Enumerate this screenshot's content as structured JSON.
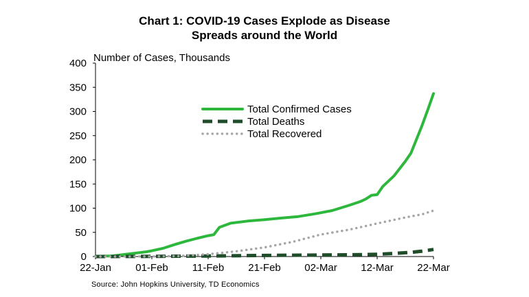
{
  "chart_data": {
    "type": "line",
    "title": "Chart 1: COVID-19 Cases Explode as Disease",
    "title_line2": "Spreads around the World",
    "ylabel": "Number of Cases, Thousands",
    "source": "Source: John Hopkins University, TD Economics",
    "xlim": [
      "2020-01-22",
      "2020-03-22"
    ],
    "ylim": [
      0,
      400
    ],
    "yticks": [
      0,
      50,
      100,
      150,
      200,
      250,
      300,
      350,
      400
    ],
    "xtick_labels": [
      "22-Jan",
      "01-Feb",
      "11-Feb",
      "21-Feb",
      "02-Mar",
      "12-Mar",
      "22-Mar"
    ],
    "xtick_dates": [
      "2020-01-22",
      "2020-02-01",
      "2020-02-11",
      "2020-02-21",
      "2020-03-02",
      "2020-03-12",
      "2020-03-22"
    ],
    "grid": false,
    "legend_position": "center",
    "series": [
      {
        "name": "Total Confirmed Cases",
        "color": "#2db83d",
        "style": "solid",
        "points": [
          [
            "2020-01-22",
            0.6
          ],
          [
            "2020-01-25",
            1.3
          ],
          [
            "2020-01-28",
            5.5
          ],
          [
            "2020-01-31",
            9.8
          ],
          [
            "2020-02-01",
            11.9
          ],
          [
            "2020-02-03",
            17
          ],
          [
            "2020-02-05",
            24.5
          ],
          [
            "2020-02-07",
            31.5
          ],
          [
            "2020-02-09",
            37.6
          ],
          [
            "2020-02-11",
            43.1
          ],
          [
            "2020-02-12",
            45.2
          ],
          [
            "2020-02-13",
            60.4
          ],
          [
            "2020-02-15",
            69
          ],
          [
            "2020-02-18",
            73.3
          ],
          [
            "2020-02-21",
            76.2
          ],
          [
            "2020-02-24",
            79.6
          ],
          [
            "2020-02-27",
            82.7
          ],
          [
            "2020-03-01",
            88.4
          ],
          [
            "2020-03-04",
            95.1
          ],
          [
            "2020-03-07",
            105.8
          ],
          [
            "2020-03-09",
            113.6
          ],
          [
            "2020-03-10",
            119
          ],
          [
            "2020-03-11",
            126.7
          ],
          [
            "2020-03-12",
            128
          ],
          [
            "2020-03-13",
            145
          ],
          [
            "2020-03-15",
            167
          ],
          [
            "2020-03-17",
            197
          ],
          [
            "2020-03-18",
            214
          ],
          [
            "2020-03-19",
            243
          ],
          [
            "2020-03-20",
            272
          ],
          [
            "2020-03-21",
            304
          ],
          [
            "2020-03-22",
            337
          ]
        ]
      },
      {
        "name": "Total Deaths",
        "color": "#1f4d2a",
        "style": "dashed",
        "points": [
          [
            "2020-01-22",
            0
          ],
          [
            "2020-02-01",
            0.3
          ],
          [
            "2020-02-11",
            1.1
          ],
          [
            "2020-02-21",
            2.2
          ],
          [
            "2020-03-02",
            3.1
          ],
          [
            "2020-03-09",
            3.8
          ],
          [
            "2020-03-12",
            4.7
          ],
          [
            "2020-03-15",
            6.4
          ],
          [
            "2020-03-18",
            8.7
          ],
          [
            "2020-03-20",
            11.2
          ],
          [
            "2020-03-22",
            14.6
          ]
        ]
      },
      {
        "name": "Total Recovered",
        "color": "#a6a6a6",
        "style": "dotted",
        "points": [
          [
            "2020-01-22",
            0
          ],
          [
            "2020-02-01",
            0.2
          ],
          [
            "2020-02-06",
            1.1
          ],
          [
            "2020-02-11",
            4.7
          ],
          [
            "2020-02-16",
            10.8
          ],
          [
            "2020-02-21",
            18.9
          ],
          [
            "2020-02-26",
            30.4
          ],
          [
            "2020-03-02",
            45.6
          ],
          [
            "2020-03-07",
            55.4
          ],
          [
            "2020-03-12",
            68.3
          ],
          [
            "2020-03-17",
            80.8
          ],
          [
            "2020-03-20",
            87.4
          ],
          [
            "2020-03-22",
            95
          ]
        ]
      }
    ]
  }
}
